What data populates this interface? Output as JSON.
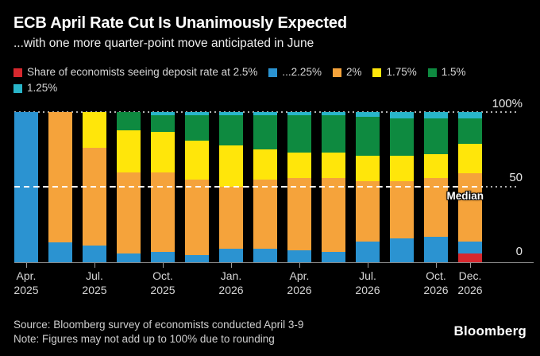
{
  "header": {
    "title": "ECB April Rate Cut Is Unanimously Expected",
    "subtitle": "...with one more quarter-point move anticipated in June"
  },
  "legend": {
    "rows": [
      [
        {
          "label": "Share of economists seeing deposit rate at 2.5%",
          "color": "#d7282e"
        },
        {
          "label": "...2.25%",
          "color": "#2b93d1"
        },
        {
          "label": "2%",
          "color": "#f5a33b"
        },
        {
          "label": "1.75%",
          "color": "#ffe60a"
        },
        {
          "label": "1.5%",
          "color": "#0e8a40"
        }
      ],
      [
        {
          "label": "1.25%",
          "color": "#29b5c9"
        }
      ]
    ]
  },
  "chart_data": {
    "type": "bar",
    "stacked": true,
    "unit": "percent share of economists",
    "ylim": [
      0,
      100
    ],
    "grid": "dotted horizontal at 100 and 50",
    "legend_position": "top",
    "n_bars": 14,
    "yticks": [
      {
        "label": "100%",
        "value": 100
      },
      {
        "label": "50",
        "value": 50
      },
      {
        "label": "0",
        "value": 0
      }
    ],
    "median_line": {
      "value": 50,
      "label": "Median",
      "style": "white dashed"
    },
    "series_bottom_to_top": [
      {
        "name": "2.5%",
        "color": "#d7282e",
        "values": [
          0,
          0,
          0,
          0,
          0,
          0,
          0,
          0,
          0,
          0,
          0,
          0,
          0,
          6
        ]
      },
      {
        "name": "2.25%",
        "color": "#2b93d1",
        "values": [
          100,
          13,
          11,
          6,
          7,
          5,
          9,
          9,
          8,
          7,
          14,
          16,
          17,
          8
        ]
      },
      {
        "name": "2%",
        "color": "#f5a33b",
        "values": [
          0,
          87,
          65,
          54,
          53,
          50,
          41,
          46,
          48,
          49,
          40,
          38,
          39,
          45
        ]
      },
      {
        "name": "1.75%",
        "color": "#ffe60a",
        "values": [
          0,
          0,
          24,
          28,
          27,
          26,
          28,
          20,
          17,
          17,
          17,
          17,
          16,
          20
        ]
      },
      {
        "name": "1.5%",
        "color": "#0e8a40",
        "values": [
          0,
          0,
          0,
          12,
          11,
          17,
          20,
          23,
          25,
          25,
          26,
          25,
          24,
          17
        ]
      },
      {
        "name": "1.25%",
        "color": "#29b5c9",
        "values": [
          0,
          0,
          0,
          0,
          2,
          2,
          2,
          2,
          2,
          2,
          3,
          4,
          4,
          4
        ]
      }
    ],
    "x_ticks": [
      {
        "bar_index": 0,
        "line1": "Apr.",
        "line2": "2025"
      },
      {
        "bar_index": 2,
        "line1": "Jul.",
        "line2": "2025"
      },
      {
        "bar_index": 4,
        "line1": "Oct.",
        "line2": "2025"
      },
      {
        "bar_index": 6,
        "line1": "Jan.",
        "line2": "2026"
      },
      {
        "bar_index": 8,
        "line1": "Apr.",
        "line2": "2026"
      },
      {
        "bar_index": 10,
        "line1": "Jul.",
        "line2": "2026"
      },
      {
        "bar_index": 12,
        "line1": "Oct.",
        "line2": "2026"
      },
      {
        "bar_index": 13,
        "line1": "Dec.",
        "line2": "2026"
      }
    ]
  },
  "footer": {
    "source": "Source: Bloomberg survey of economists conducted April 3-9",
    "note": "Note: Figures may not add up to 100% due to rounding",
    "logo": "Bloomberg"
  },
  "colors": {
    "background": "#000000",
    "title_text": "#ffffff",
    "axis_text": "#e8e8e8",
    "gridline": "#ebebeb",
    "median": "#ffffff"
  }
}
